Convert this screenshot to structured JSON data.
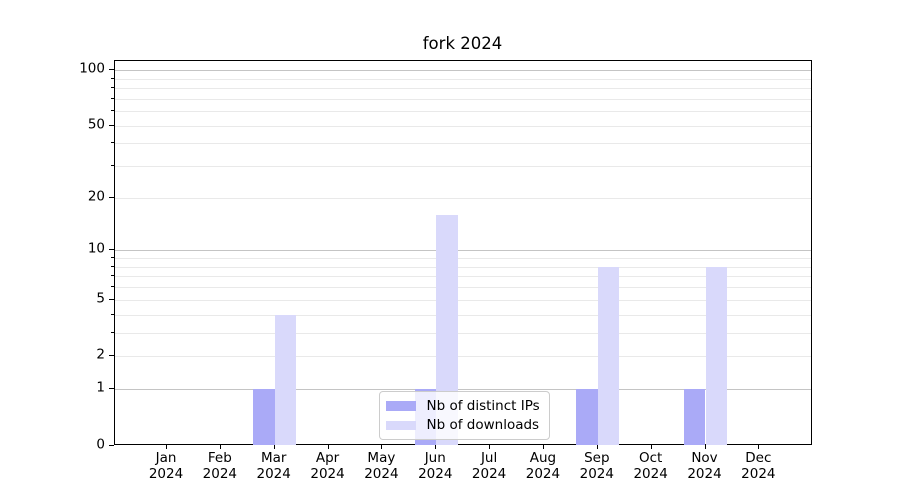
{
  "figure": {
    "title": "fork 2024",
    "background": "#ffffff"
  },
  "chart_data": {
    "type": "bar",
    "title": "fork 2024",
    "categories": [
      {
        "month": "Jan",
        "year": "2024"
      },
      {
        "month": "Feb",
        "year": "2024"
      },
      {
        "month": "Mar",
        "year": "2024"
      },
      {
        "month": "Apr",
        "year": "2024"
      },
      {
        "month": "May",
        "year": "2024"
      },
      {
        "month": "Jun",
        "year": "2024"
      },
      {
        "month": "Jul",
        "year": "2024"
      },
      {
        "month": "Aug",
        "year": "2024"
      },
      {
        "month": "Sep",
        "year": "2024"
      },
      {
        "month": "Oct",
        "year": "2024"
      },
      {
        "month": "Nov",
        "year": "2024"
      },
      {
        "month": "Dec",
        "year": "2024"
      }
    ],
    "series": [
      {
        "name": "Nb of distinct IPs",
        "color": "#aaaaf7",
        "values": [
          0,
          0,
          1,
          0,
          0,
          1,
          0,
          0,
          1,
          0,
          1,
          0
        ]
      },
      {
        "name": "Nb of downloads",
        "color": "#d9d9fb",
        "values": [
          0,
          0,
          4,
          0,
          0,
          16,
          0,
          0,
          8,
          0,
          8,
          0
        ]
      }
    ],
    "xlabel": "",
    "ylabel": "",
    "y_scale": "log1p",
    "y_tick_labels": [
      "0",
      "1",
      "2",
      "5",
      "10",
      "20",
      "50",
      "100"
    ],
    "y_ticks": [
      0,
      1,
      2,
      5,
      10,
      20,
      50,
      100
    ],
    "y_major_gridlines": [
      1,
      10,
      100
    ],
    "y_minor_gridlines": [
      2,
      3,
      4,
      5,
      6,
      7,
      8,
      9,
      20,
      30,
      40,
      50,
      60,
      70,
      80,
      90
    ],
    "ylim": [
      0,
      112
    ],
    "grid": true,
    "legend_position": "lower center"
  },
  "legend": {
    "items": [
      {
        "label": "Nb of distinct IPs",
        "color": "#aaaaf7"
      },
      {
        "label": "Nb of downloads",
        "color": "#d9d9fb"
      }
    ]
  },
  "colors": {
    "major_grid": "#c4c4c4",
    "minor_grid": "#e9e9e9",
    "axis": "#000000",
    "text": "#000000"
  }
}
